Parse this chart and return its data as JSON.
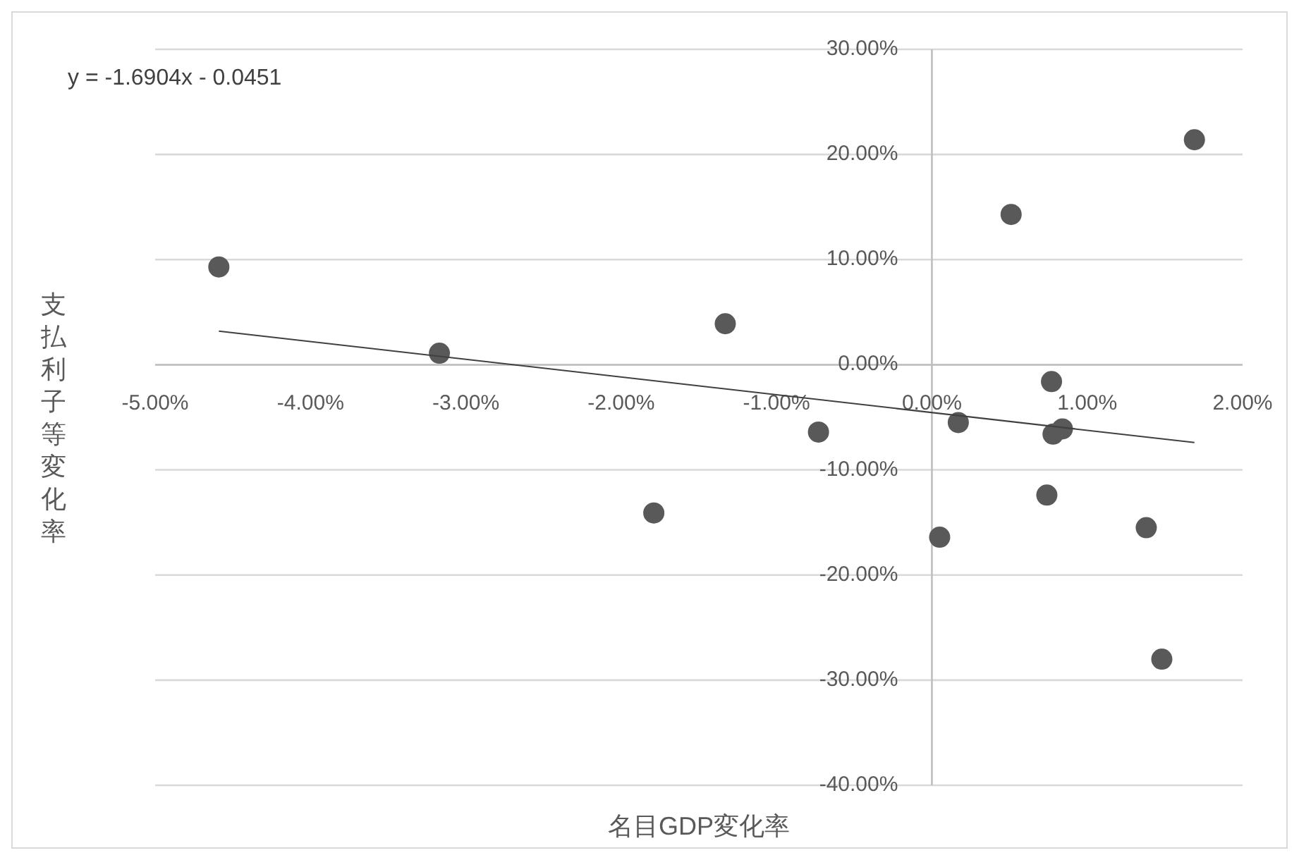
{
  "chart_data": {
    "type": "scatter",
    "xlabel": "名目GDP変化率",
    "ylabel": "支払利子等変化率",
    "annotations": [
      "y = -1.6904x - 0.0451"
    ],
    "xlim": [
      -5,
      2
    ],
    "xticks": [
      {
        "value": -5,
        "label": "-5.00%"
      },
      {
        "value": -4,
        "label": "-4.00%"
      },
      {
        "value": -3,
        "label": "-3.00%"
      },
      {
        "value": -2,
        "label": "-2.00%"
      },
      {
        "value": -1,
        "label": "-1.00%"
      },
      {
        "value": 0,
        "label": "0.00%"
      },
      {
        "value": 1,
        "label": "1.00%"
      },
      {
        "value": 2,
        "label": "2.00%"
      }
    ],
    "ylim": [
      -40,
      30
    ],
    "yticks": [
      {
        "value": -40,
        "label": "-40.00%"
      },
      {
        "value": -30,
        "label": "-30.00%"
      },
      {
        "value": -20,
        "label": "-20.00%"
      },
      {
        "value": -10,
        "label": "-10.00%"
      },
      {
        "value": 0,
        "label": "0.00%"
      },
      {
        "value": 10,
        "label": "10.00%"
      },
      {
        "value": 20,
        "label": "20.00%"
      },
      {
        "value": 30,
        "label": "30.00%"
      }
    ],
    "grid": "y",
    "series": [
      {
        "color": "#595959",
        "marker": "circle",
        "x": [
          -4.59,
          -3.17,
          -1.33,
          -1.79,
          -0.73,
          0.17,
          0.05,
          0.51,
          0.77,
          0.78,
          0.84,
          0.74,
          1.38,
          1.48,
          1.69
        ],
        "values": [
          9.3,
          1.1,
          3.9,
          -14.1,
          -6.4,
          -5.5,
          -16.4,
          14.3,
          -1.6,
          -6.6,
          -6.1,
          -12.4,
          -15.5,
          -28.0,
          21.4
        ]
      },
      {
        "type": "line",
        "color": "#404040",
        "marker": "none",
        "line_style": "solid",
        "x": [
          -4.59,
          1.69
        ],
        "values": [
          3.2,
          -7.4
        ]
      }
    ]
  }
}
